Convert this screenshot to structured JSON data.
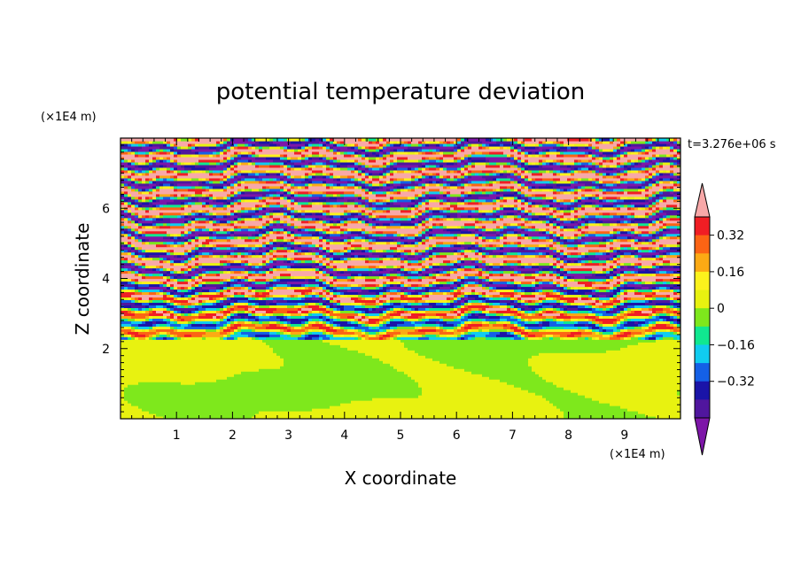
{
  "chart_data": {
    "type": "heatmap",
    "title": "potential temperature deviation",
    "xlabel": "X coordinate",
    "ylabel": "Z coordinate",
    "x_unit": "(×1E4 m)",
    "y_unit": "(×1E4 m)",
    "time_label": "t=3.276e+06 s",
    "xlim": [
      0,
      10
    ],
    "ylim": [
      0,
      8
    ],
    "x_ticks": [
      "1",
      "2",
      "3",
      "4",
      "5",
      "6",
      "7",
      "8",
      "9"
    ],
    "x_tick_values": [
      1,
      2,
      3,
      4,
      5,
      6,
      7,
      8,
      9
    ],
    "y_ticks": [
      "2",
      "4",
      "6"
    ],
    "y_tick_values": [
      2,
      4,
      6
    ],
    "colorbar": {
      "levels": [
        -0.48,
        -0.4,
        -0.32,
        -0.24,
        -0.16,
        -0.08,
        0,
        0.08,
        0.16,
        0.24,
        0.32,
        0.4,
        0.48
      ],
      "colors": [
        "#7d16a8",
        "#50169e",
        "#1a14a8",
        "#1460e6",
        "#10ccf0",
        "#10e890",
        "#7ee81c",
        "#e8f210",
        "#fcf21c",
        "#fcaa14",
        "#fc6414",
        "#f01e24",
        "#f8a8a8"
      ],
      "tick_labels": [
        "0.32",
        "0.16",
        "0",
        "−0.16",
        "−0.32"
      ],
      "tick_values": [
        0.32,
        0.16,
        0,
        -0.16,
        -0.32
      ]
    },
    "regions": {
      "lower_mixed_layer_top_z": 2.3,
      "lower_layer_values": [
        -0.08,
        0.0
      ],
      "upper_layer_values": [
        -0.48,
        0.48
      ]
    }
  }
}
